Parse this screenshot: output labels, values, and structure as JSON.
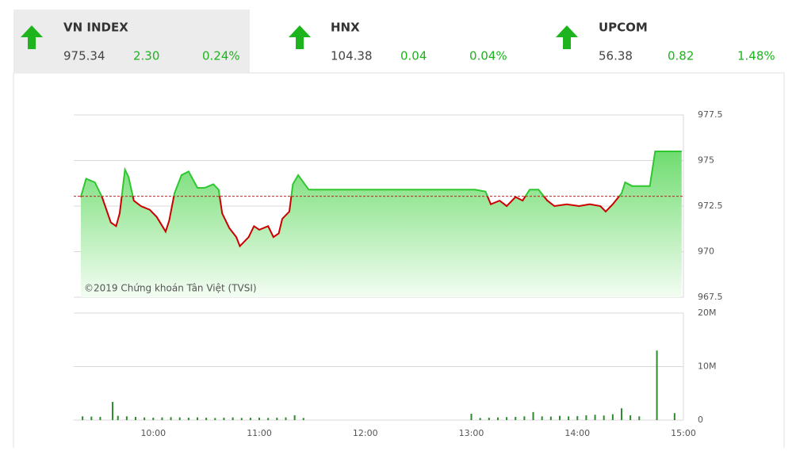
{
  "indices": [
    {
      "name": "VN INDEX",
      "value": "975.34",
      "change": "2.30",
      "percent": "0.24%"
    },
    {
      "name": "HNX",
      "value": "104.38",
      "change": "0.04",
      "percent": "0.04%"
    },
    {
      "name": "UPCOM",
      "value": "56.38",
      "change": "0.82",
      "percent": "1.48%"
    }
  ],
  "chart_data": [
    {
      "type": "line",
      "annotation": "©2019 Chứng khoán Tân Việt (TVSI)",
      "x": [
        "09:19",
        "09:22",
        "09:27",
        "09:31",
        "09:36",
        "09:39",
        "09:41",
        "09:44",
        "09:46",
        "09:49",
        "09:53",
        "09:58",
        "10:02",
        "10:07",
        "10:09",
        "10:12",
        "10:16",
        "10:20",
        "10:25",
        "10:29",
        "10:34",
        "10:37",
        "10:39",
        "10:43",
        "10:47",
        "10:49",
        "10:54",
        "10:57",
        "11:00",
        "11:05",
        "11:08",
        "11:11",
        "11:13",
        "11:17",
        "11:19",
        "11:22",
        "11:28",
        "11:30",
        "13:00",
        "13:02",
        "13:08",
        "13:11",
        "13:16",
        "13:20",
        "13:25",
        "13:29",
        "13:33",
        "13:38",
        "13:43",
        "13:47",
        "13:54",
        "14:01",
        "14:07",
        "14:13",
        "14:16",
        "14:20",
        "14:25",
        "14:27",
        "14:31",
        "14:41",
        "14:44",
        "14:59"
      ],
      "values": [
        973.0,
        974.0,
        973.8,
        973.0,
        971.6,
        971.4,
        972.1,
        974.5,
        974.1,
        972.8,
        972.5,
        972.3,
        971.9,
        971.1,
        971.7,
        973.2,
        974.2,
        974.4,
        973.5,
        973.5,
        973.7,
        973.4,
        972.1,
        971.3,
        970.8,
        970.3,
        970.8,
        971.4,
        971.2,
        971.4,
        970.8,
        971.0,
        971.8,
        972.2,
        973.7,
        974.2,
        973.4,
        973.4,
        973.4,
        973.4,
        973.3,
        972.6,
        972.8,
        972.5,
        973.0,
        972.8,
        973.4,
        973.4,
        972.8,
        972.5,
        972.6,
        972.5,
        972.6,
        972.5,
        972.2,
        972.6,
        973.2,
        973.8,
        973.6,
        973.6,
        975.5,
        975.5
      ],
      "reference": 973.04,
      "up_color": "#2fc72f",
      "down_color": "#cc0000",
      "xlim": [
        "09:15",
        "15:00"
      ],
      "ylim": [
        967.5,
        977.5
      ],
      "yticks": [
        967.5,
        970,
        972.5,
        975,
        977.5
      ],
      "grid": true
    },
    {
      "type": "bar",
      "color": "#2e8b2e",
      "x": [
        "09:20",
        "09:25",
        "09:30",
        "09:37",
        "09:40",
        "09:45",
        "09:50",
        "09:55",
        "10:00",
        "10:05",
        "10:10",
        "10:15",
        "10:20",
        "10:25",
        "10:30",
        "10:35",
        "10:40",
        "10:45",
        "10:50",
        "10:55",
        "11:00",
        "11:05",
        "11:10",
        "11:15",
        "11:20",
        "11:25",
        "13:00",
        "13:05",
        "13:10",
        "13:15",
        "13:20",
        "13:25",
        "13:30",
        "13:35",
        "13:40",
        "13:45",
        "13:50",
        "13:55",
        "14:00",
        "14:05",
        "14:10",
        "14:15",
        "14:20",
        "14:25",
        "14:30",
        "14:35",
        "14:45",
        "14:55"
      ],
      "values": [
        700000,
        650000,
        600000,
        3400000,
        800000,
        700000,
        600000,
        500000,
        450000,
        500000,
        550000,
        500000,
        450000,
        500000,
        450000,
        400000,
        450000,
        500000,
        400000,
        450000,
        450000,
        400000,
        450000,
        500000,
        900000,
        400000,
        1200000,
        400000,
        450000,
        500000,
        550000,
        600000,
        700000,
        1500000,
        700000,
        650000,
        800000,
        700000,
        750000,
        900000,
        1000000,
        850000,
        1100000,
        2200000,
        900000,
        700000,
        13000000,
        1300000
      ],
      "xlim": [
        "09:15",
        "15:00"
      ],
      "ylim": [
        0,
        20000000
      ],
      "yticks": [
        0,
        {
          "value": 10000000,
          "label": "10M"
        },
        {
          "value": 20000000,
          "label": "20M"
        }
      ],
      "xticks": [
        "10:00",
        "11:00",
        "12:00",
        "13:00",
        "14:00",
        "15:00"
      ],
      "grid": true
    }
  ]
}
